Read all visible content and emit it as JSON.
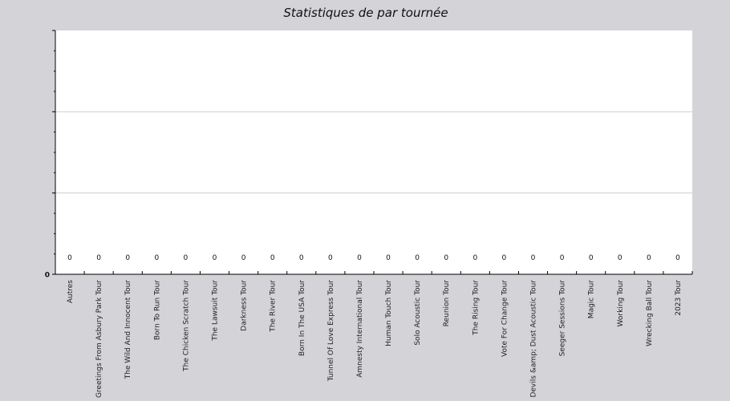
{
  "chart_data": {
    "type": "bar",
    "title": "Statistiques de  par tournée",
    "xlabel": "",
    "ylabel": "",
    "ylim": [
      0,
      1
    ],
    "y_tick_labels": [
      "0"
    ],
    "grid": true,
    "categories": [
      "Autres",
      "Greetings From Asbury Park Tour",
      "The Wild And Innocent Tour",
      "Born To Run Tour",
      "The Chicken Scratch Tour",
      "The Lawsuit Tour",
      "Darkness Tour",
      "The River Tour",
      "Born In The USA Tour",
      "Tunnel Of Love Express Tour",
      "Amnesty International Tour",
      "Human Touch Tour",
      "Solo Acoustic Tour",
      "Reunion Tour",
      "The Rising Tour",
      "Vote For Change Tour",
      "Devils &amp; Dust Acoustic Tour",
      "Seeger Sessions Tour",
      "Magic Tour",
      "Working Tour",
      "Wrecking Ball Tour",
      "2023 Tour"
    ],
    "values": [
      0,
      0,
      0,
      0,
      0,
      0,
      0,
      0,
      0,
      0,
      0,
      0,
      0,
      0,
      0,
      0,
      0,
      0,
      0,
      0,
      0,
      0
    ],
    "value_labels": [
      "0",
      "0",
      "0",
      "0",
      "0",
      "0",
      "0",
      "0",
      "0",
      "0",
      "0",
      "0",
      "0",
      "0",
      "0",
      "0",
      "0",
      "0",
      "0",
      "0",
      "0",
      "0"
    ]
  }
}
